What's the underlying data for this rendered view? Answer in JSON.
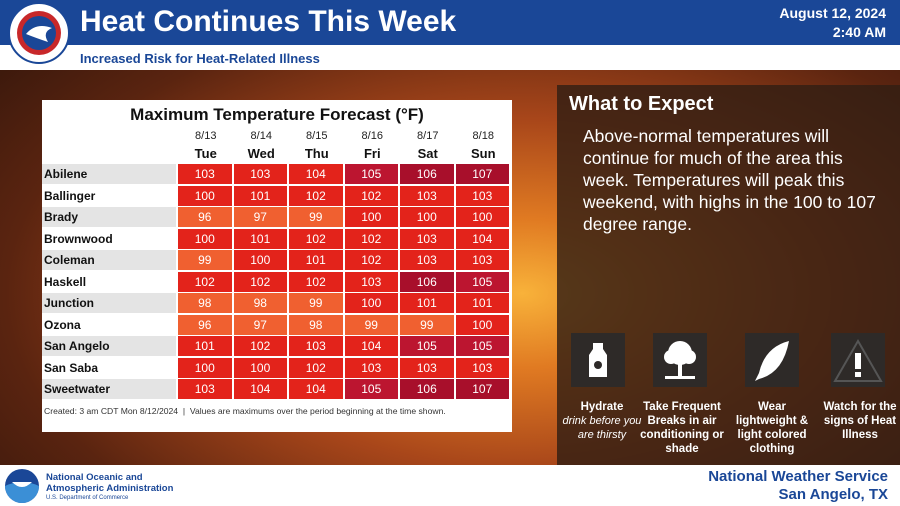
{
  "header": {
    "title": "Heat Continues This Week",
    "subtitle": "Increased Risk for Heat-Related Illness",
    "date": "August 12, 2024",
    "time": "2:40 AM"
  },
  "table": {
    "title": "Maximum Temperature Forecast (°F)",
    "dates": [
      "8/13",
      "8/14",
      "8/15",
      "8/16",
      "8/17",
      "8/18"
    ],
    "days": [
      "Tue",
      "Wed",
      "Thu",
      "Fri",
      "Sat",
      "Sun"
    ],
    "rows": [
      {
        "city": "Abilene",
        "values": [
          103,
          103,
          104,
          105,
          106,
          107
        ]
      },
      {
        "city": "Ballinger",
        "values": [
          100,
          101,
          102,
          102,
          103,
          103
        ]
      },
      {
        "city": "Brady",
        "values": [
          96,
          97,
          99,
          100,
          100,
          100
        ]
      },
      {
        "city": "Brownwood",
        "values": [
          100,
          101,
          102,
          102,
          103,
          104
        ]
      },
      {
        "city": "Coleman",
        "values": [
          99,
          100,
          101,
          102,
          103,
          103
        ]
      },
      {
        "city": "Haskell",
        "values": [
          102,
          102,
          102,
          103,
          106,
          105
        ]
      },
      {
        "city": "Junction",
        "values": [
          98,
          98,
          99,
          100,
          101,
          101
        ]
      },
      {
        "city": "Ozona",
        "values": [
          96,
          97,
          98,
          99,
          99,
          100
        ]
      },
      {
        "city": "San Angelo",
        "values": [
          101,
          102,
          103,
          104,
          105,
          105
        ]
      },
      {
        "city": "San Saba",
        "values": [
          100,
          100,
          102,
          103,
          103,
          103
        ]
      },
      {
        "city": "Sweetwater",
        "values": [
          103,
          104,
          104,
          105,
          106,
          107
        ]
      }
    ],
    "note": "Created: 3 am CDT Mon 8/12/2024  |  Values are maximums over the period beginning at the time shown."
  },
  "panel": {
    "heading": "What to Expect",
    "body": "Above-normal temperatures will continue for much of the area this week. Temperatures will peak this weekend, with highs in the 100 to 107 degree range."
  },
  "tips": [
    {
      "title": "Hydrate",
      "detail": "drink before you are thirsty"
    },
    {
      "title": "Take Frequent Breaks in air conditioning or shade"
    },
    {
      "title": "Wear lightweight & light colored clothing"
    },
    {
      "title": "Watch for the signs of Heat Illness"
    }
  ],
  "footer": {
    "agency": "National Oceanic and Atmospheric Administration",
    "department": "U.S. Department of Commerce",
    "office": "National Weather Service",
    "location": "San Angelo, TX"
  }
}
